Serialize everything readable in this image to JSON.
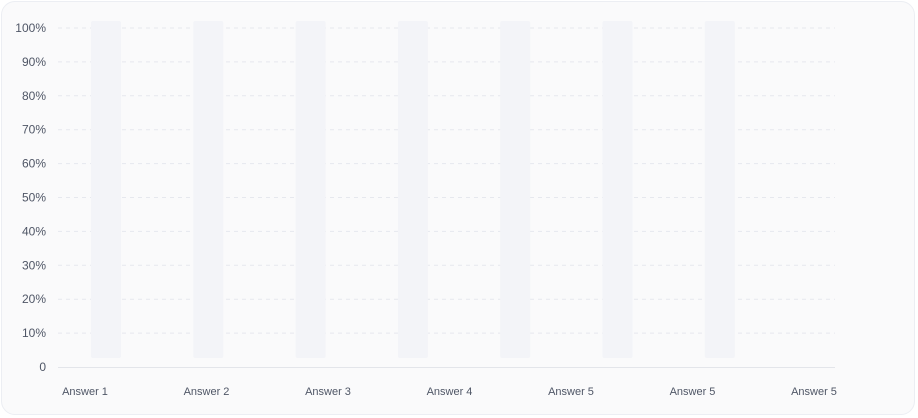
{
  "chart_data": {
    "type": "bar",
    "categories": [
      "Answer 1",
      "Answer 2",
      "Answer 3",
      "Answer 4",
      "Answer 5",
      "Answer 5",
      "Answer 5"
    ],
    "values": [
      0,
      0,
      0,
      0,
      0,
      0,
      0
    ],
    "ylim": [
      0,
      100
    ],
    "yticks": [
      "0",
      "10%",
      "20%",
      "30%",
      "40%",
      "50%",
      "60%",
      "70%",
      "80%",
      "90%",
      "100%"
    ],
    "grid": true,
    "colors": {
      "track": "#f3f4f8",
      "bar": "#6c7cf0",
      "grid": "#e6e8ee",
      "axis": "#e3e5ea"
    }
  }
}
